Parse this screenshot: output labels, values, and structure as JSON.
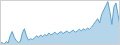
{
  "chart_data": {
    "type": "area",
    "values": [
      28,
      32,
      25,
      35,
      30,
      55,
      70,
      50,
      38,
      32,
      35,
      65,
      80,
      55,
      40,
      45,
      42,
      48,
      55,
      50,
      58,
      52,
      60,
      55,
      65,
      58,
      62,
      68,
      60,
      65,
      70,
      63,
      68,
      72,
      65,
      70,
      75,
      68,
      72,
      78,
      72,
      80,
      75,
      82,
      78,
      85,
      95,
      105,
      115,
      100,
      130,
      145,
      160,
      175,
      140,
      95,
      155,
      170,
      130,
      90
    ],
    "color": "#5ba3d0",
    "xlim": [
      0,
      59
    ],
    "ylim": [
      23,
      180.25
    ],
    "tick_labels": false
  }
}
